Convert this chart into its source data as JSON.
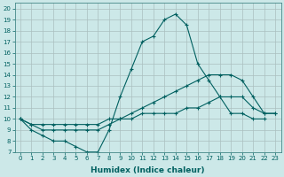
{
  "xlabel": "Humidex (Indice chaleur)",
  "ylabel": "",
  "background_color": "#cce8e8",
  "grid_color": "#aabfbf",
  "line_color": "#006060",
  "xlim": [
    -0.5,
    23.5
  ],
  "ylim": [
    7,
    20.5
  ],
  "xticks": [
    0,
    1,
    2,
    3,
    4,
    5,
    6,
    7,
    8,
    9,
    10,
    11,
    12,
    13,
    14,
    15,
    16,
    17,
    18,
    19,
    20,
    21,
    22,
    23
  ],
  "yticks": [
    7,
    8,
    9,
    10,
    11,
    12,
    13,
    14,
    15,
    16,
    17,
    18,
    19,
    20
  ],
  "curve1_x": [
    0,
    1,
    2,
    3,
    4,
    5,
    6,
    7,
    8,
    9,
    10,
    11,
    12,
    13,
    14,
    15,
    16,
    17,
    18,
    19,
    20,
    21,
    22
  ],
  "curve1_y": [
    10,
    9,
    8.5,
    8,
    8,
    7.5,
    7,
    7,
    9,
    12,
    14.5,
    17,
    17.5,
    19,
    19.5,
    18.5,
    15,
    13.5,
    12,
    10.5,
    10.5,
    10,
    10
  ],
  "curve2_x": [
    0,
    1,
    2,
    3,
    4,
    5,
    6,
    7,
    8,
    9,
    10,
    11,
    12,
    13,
    14,
    15,
    16,
    17,
    18,
    19,
    20,
    21,
    22,
    23
  ],
  "curve2_y": [
    10,
    9.5,
    9,
    9,
    9,
    9,
    9,
    9,
    9.5,
    10,
    10.5,
    11,
    11.5,
    12,
    12.5,
    13,
    13.5,
    14,
    14,
    14,
    13.5,
    12,
    10.5,
    10.5
  ],
  "curve3_x": [
    0,
    1,
    2,
    3,
    4,
    5,
    6,
    7,
    8,
    9,
    10,
    11,
    12,
    13,
    14,
    15,
    16,
    17,
    18,
    19,
    20,
    21,
    22,
    23
  ],
  "curve3_y": [
    10,
    9.5,
    9.5,
    9.5,
    9.5,
    9.5,
    9.5,
    9.5,
    10,
    10,
    10,
    10.5,
    10.5,
    10.5,
    10.5,
    11,
    11,
    11.5,
    12,
    12,
    12,
    11,
    10.5,
    10.5
  ],
  "marker": "+",
  "markersize": 3,
  "linewidth": 0.8,
  "xlabel_fontsize": 6.5,
  "tick_fontsize": 5,
  "fig_width": 3.2,
  "fig_height": 2.0,
  "dpi": 100
}
